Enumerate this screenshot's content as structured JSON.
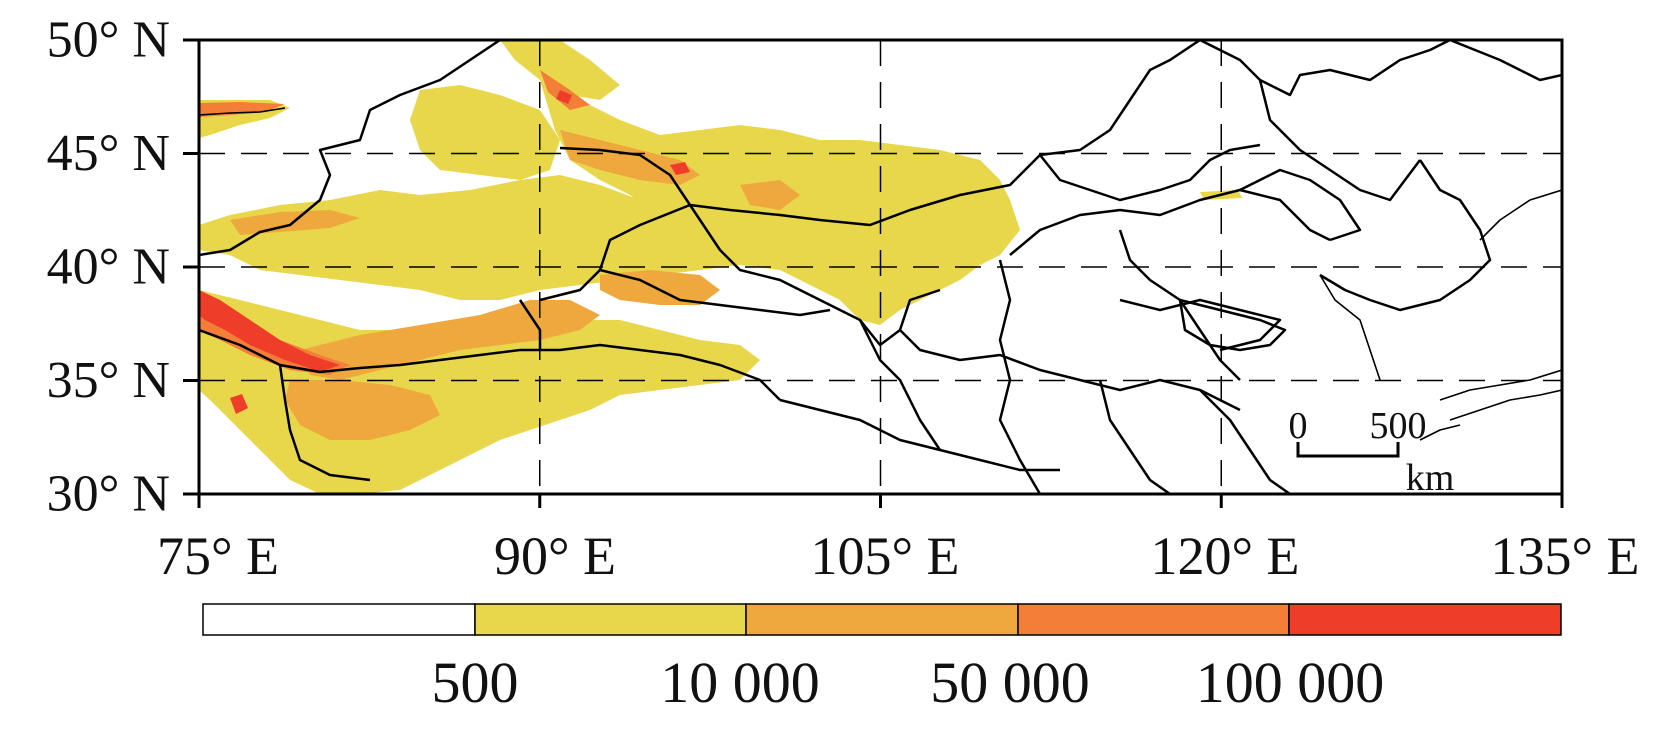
{
  "map": {
    "lat_ticks": [
      {
        "value": 50,
        "label": "50° N"
      },
      {
        "value": 45,
        "label": "45° N"
      },
      {
        "value": 40,
        "label": "40° N"
      },
      {
        "value": 35,
        "label": "35° N"
      },
      {
        "value": 30,
        "label": "30° N"
      }
    ],
    "lon_ticks": [
      {
        "value": 75,
        "label": "75° E"
      },
      {
        "value": 90,
        "label": "90° E"
      },
      {
        "value": 105,
        "label": "105° E"
      },
      {
        "value": 120,
        "label": "120° E"
      },
      {
        "value": 135,
        "label": "135° E"
      }
    ],
    "extent": {
      "lon": [
        75,
        135
      ],
      "lat": [
        30,
        50
      ]
    },
    "grid": "dashed",
    "scale_bar": {
      "start": "0",
      "end": "500",
      "unit": "km"
    }
  },
  "colorbar": {
    "colors": [
      "#ffffff",
      "#e8d74a",
      "#eea83e",
      "#f27e38",
      "#ee3e2a"
    ],
    "labels": [
      "500",
      "10 000",
      "50 000",
      "100 000"
    ]
  }
}
